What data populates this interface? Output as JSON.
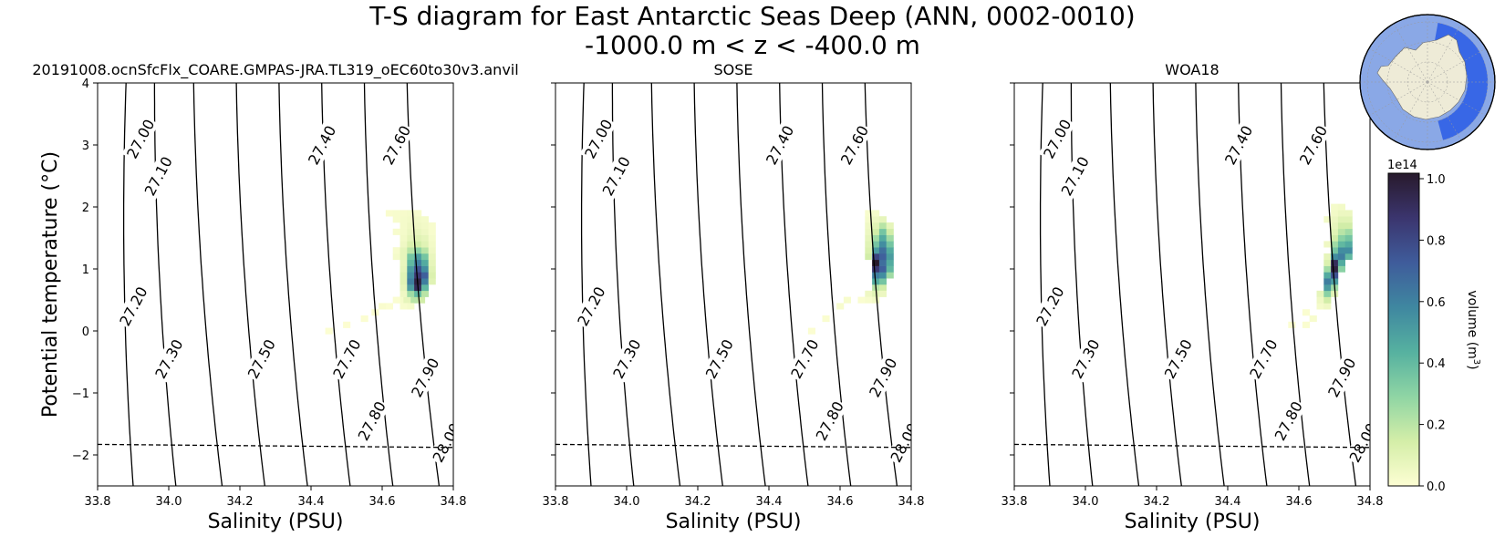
{
  "suptitle": {
    "line1": "T-S diagram for East Antarctic Seas Deep (ANN, 0002-0010)",
    "line2": "-1000.0 m < z < -400.0 m"
  },
  "chart_data": [
    {
      "type": "heatmap",
      "title": "20191008.ocnSfcFlx_COARE.GMPAS-JRA.TL319_oEC60to30v3.anvil",
      "xlabel": "Salinity (PSU)",
      "ylabel": "Potential temperature (°C)",
      "xlim": [
        33.8,
        34.8
      ],
      "ylim": [
        -2.5,
        4
      ],
      "xticks": [
        "33.8",
        "34.0",
        "34.2",
        "34.4",
        "34.6",
        "34.8"
      ],
      "yticks": [
        "−2",
        "−1",
        "0",
        "1",
        "2",
        "3",
        "4"
      ],
      "cells": [
        [
          34.45,
          0.0,
          0.004
        ],
        [
          34.5,
          0.1,
          0.005
        ],
        [
          34.55,
          0.2,
          0.008
        ],
        [
          34.58,
          0.3,
          0.01
        ],
        [
          34.6,
          0.4,
          0.015
        ],
        [
          34.65,
          0.5,
          0.03
        ],
        [
          34.67,
          0.5,
          0.08
        ],
        [
          34.69,
          0.5,
          0.2
        ],
        [
          34.71,
          0.5,
          0.15
        ],
        [
          34.66,
          0.6,
          0.05
        ],
        [
          34.68,
          0.6,
          0.25
        ],
        [
          34.7,
          0.6,
          0.4
        ],
        [
          34.72,
          0.6,
          0.2
        ],
        [
          34.66,
          0.7,
          0.08
        ],
        [
          34.68,
          0.7,
          0.5
        ],
        [
          34.7,
          0.7,
          0.9
        ],
        [
          34.72,
          0.7,
          0.4
        ],
        [
          34.66,
          0.8,
          0.1
        ],
        [
          34.68,
          0.8,
          0.6
        ],
        [
          34.7,
          0.8,
          0.95
        ],
        [
          34.72,
          0.8,
          0.6
        ],
        [
          34.74,
          0.8,
          0.1
        ],
        [
          34.66,
          0.9,
          0.1
        ],
        [
          34.68,
          0.9,
          0.55
        ],
        [
          34.7,
          0.9,
          0.85
        ],
        [
          34.72,
          0.9,
          0.7
        ],
        [
          34.74,
          0.9,
          0.12
        ],
        [
          34.66,
          1.0,
          0.08
        ],
        [
          34.68,
          1.0,
          0.5
        ],
        [
          34.7,
          1.0,
          0.75
        ],
        [
          34.72,
          1.0,
          0.55
        ],
        [
          34.74,
          1.0,
          0.1
        ],
        [
          34.66,
          1.1,
          0.07
        ],
        [
          34.68,
          1.1,
          0.4
        ],
        [
          34.7,
          1.1,
          0.6
        ],
        [
          34.72,
          1.1,
          0.45
        ],
        [
          34.74,
          1.1,
          0.08
        ],
        [
          34.64,
          1.2,
          0.03
        ],
        [
          34.66,
          1.2,
          0.08
        ],
        [
          34.68,
          1.2,
          0.35
        ],
        [
          34.7,
          1.2,
          0.5
        ],
        [
          34.72,
          1.2,
          0.35
        ],
        [
          34.74,
          1.2,
          0.07
        ],
        [
          34.64,
          1.3,
          0.02
        ],
        [
          34.66,
          1.3,
          0.08
        ],
        [
          34.68,
          1.3,
          0.2
        ],
        [
          34.7,
          1.3,
          0.3
        ],
        [
          34.72,
          1.3,
          0.2
        ],
        [
          34.74,
          1.3,
          0.05
        ],
        [
          34.66,
          1.4,
          0.05
        ],
        [
          34.68,
          1.4,
          0.12
        ],
        [
          34.7,
          1.4,
          0.15
        ],
        [
          34.72,
          1.4,
          0.1
        ],
        [
          34.74,
          1.4,
          0.04
        ],
        [
          34.66,
          1.5,
          0.04
        ],
        [
          34.68,
          1.5,
          0.08
        ],
        [
          34.7,
          1.5,
          0.1
        ],
        [
          34.72,
          1.5,
          0.08
        ],
        [
          34.74,
          1.5,
          0.03
        ],
        [
          34.64,
          1.6,
          0.02
        ],
        [
          34.66,
          1.6,
          0.03
        ],
        [
          34.68,
          1.6,
          0.06
        ],
        [
          34.7,
          1.6,
          0.07
        ],
        [
          34.72,
          1.6,
          0.05
        ],
        [
          34.74,
          1.6,
          0.02
        ],
        [
          34.66,
          1.7,
          0.03
        ],
        [
          34.68,
          1.7,
          0.05
        ],
        [
          34.7,
          1.7,
          0.05
        ],
        [
          34.72,
          1.7,
          0.04
        ],
        [
          34.74,
          1.7,
          0.02
        ],
        [
          34.64,
          1.8,
          0.02
        ],
        [
          34.66,
          1.8,
          0.03
        ],
        [
          34.68,
          1.8,
          0.04
        ],
        [
          34.7,
          1.8,
          0.04
        ],
        [
          34.72,
          1.8,
          0.03
        ],
        [
          34.62,
          1.9,
          0.015
        ],
        [
          34.64,
          1.9,
          0.02
        ],
        [
          34.66,
          1.9,
          0.025
        ],
        [
          34.68,
          1.9,
          0.03
        ],
        [
          34.7,
          1.9,
          0.02
        ],
        [
          34.66,
          0.4,
          0.02
        ],
        [
          34.68,
          0.4,
          0.03
        ],
        [
          34.64,
          0.5,
          0.01
        ],
        [
          34.62,
          0.4,
          0.008
        ]
      ]
    },
    {
      "type": "heatmap",
      "title": "SOSE",
      "xlabel": "Salinity (PSU)",
      "ylabel": "",
      "xlim": [
        33.8,
        34.8
      ],
      "ylim": [
        -2.5,
        4
      ],
      "xticks": [
        "33.8",
        "34.0",
        "34.2",
        "34.4",
        "34.6",
        "34.8"
      ],
      "yticks": [],
      "cells": [
        [
          34.52,
          0.0,
          0.006
        ],
        [
          34.56,
          0.2,
          0.01
        ],
        [
          34.6,
          0.4,
          0.02
        ],
        [
          34.62,
          0.5,
          0.02
        ],
        [
          34.7,
          0.7,
          0.2
        ],
        [
          34.72,
          0.7,
          0.15
        ],
        [
          34.7,
          0.8,
          0.45
        ],
        [
          34.72,
          0.8,
          0.35
        ],
        [
          34.7,
          0.9,
          0.6
        ],
        [
          34.72,
          0.9,
          0.55
        ],
        [
          34.74,
          0.9,
          0.25
        ],
        [
          34.7,
          1.0,
          0.85
        ],
        [
          34.72,
          1.0,
          0.7
        ],
        [
          34.74,
          1.0,
          0.4
        ],
        [
          34.7,
          1.1,
          1.0
        ],
        [
          34.72,
          1.1,
          0.65
        ],
        [
          34.74,
          1.1,
          0.45
        ],
        [
          34.68,
          1.2,
          0.15
        ],
        [
          34.7,
          1.2,
          0.8
        ],
        [
          34.72,
          1.2,
          0.7
        ],
        [
          34.74,
          1.2,
          0.5
        ],
        [
          34.68,
          1.3,
          0.12
        ],
        [
          34.7,
          1.3,
          0.5
        ],
        [
          34.72,
          1.3,
          0.65
        ],
        [
          34.74,
          1.3,
          0.45
        ],
        [
          34.68,
          1.4,
          0.1
        ],
        [
          34.7,
          1.4,
          0.35
        ],
        [
          34.72,
          1.4,
          0.55
        ],
        [
          34.74,
          1.4,
          0.35
        ],
        [
          34.68,
          1.5,
          0.08
        ],
        [
          34.7,
          1.5,
          0.25
        ],
        [
          34.72,
          1.5,
          0.45
        ],
        [
          34.74,
          1.5,
          0.25
        ],
        [
          34.68,
          1.6,
          0.06
        ],
        [
          34.7,
          1.6,
          0.15
        ],
        [
          34.72,
          1.6,
          0.35
        ],
        [
          34.74,
          1.6,
          0.15
        ],
        [
          34.68,
          1.7,
          0.05
        ],
        [
          34.7,
          1.7,
          0.1
        ],
        [
          34.72,
          1.7,
          0.2
        ],
        [
          34.74,
          1.7,
          0.08
        ],
        [
          34.68,
          1.8,
          0.03
        ],
        [
          34.7,
          1.8,
          0.06
        ],
        [
          34.72,
          1.8,
          0.08
        ],
        [
          34.68,
          1.9,
          0.02
        ],
        [
          34.7,
          1.9,
          0.03
        ],
        [
          34.68,
          0.6,
          0.05
        ],
        [
          34.7,
          0.6,
          0.1
        ],
        [
          34.72,
          0.6,
          0.06
        ],
        [
          34.68,
          0.5,
          0.02
        ],
        [
          34.7,
          0.5,
          0.04
        ],
        [
          34.66,
          0.5,
          0.01
        ]
      ]
    },
    {
      "type": "heatmap",
      "title": "WOA18",
      "xlabel": "Salinity (PSU)",
      "ylabel": "",
      "xlim": [
        33.8,
        34.8
      ],
      "ylim": [
        -2.5,
        4
      ],
      "xticks": [
        "33.8",
        "34.0",
        "34.2",
        "34.4",
        "34.6",
        "34.8"
      ],
      "yticks": [],
      "cells": [
        [
          34.58,
          0.1,
          0.006
        ],
        [
          34.62,
          0.3,
          0.01
        ],
        [
          34.66,
          0.4,
          0.03
        ],
        [
          34.68,
          0.4,
          0.05
        ],
        [
          34.66,
          0.5,
          0.05
        ],
        [
          34.68,
          0.5,
          0.15
        ],
        [
          34.66,
          0.6,
          0.08
        ],
        [
          34.68,
          0.6,
          0.3
        ],
        [
          34.7,
          0.6,
          0.1
        ],
        [
          34.68,
          0.7,
          0.5
        ],
        [
          34.7,
          0.7,
          0.25
        ],
        [
          34.68,
          0.8,
          0.6
        ],
        [
          34.7,
          0.8,
          0.5
        ],
        [
          34.68,
          0.9,
          0.45
        ],
        [
          34.7,
          0.9,
          0.75
        ],
        [
          34.68,
          1.0,
          0.25
        ],
        [
          34.7,
          1.0,
          0.95
        ],
        [
          34.72,
          1.0,
          0.3
        ],
        [
          34.68,
          1.1,
          0.12
        ],
        [
          34.7,
          1.1,
          0.9
        ],
        [
          34.72,
          1.1,
          0.45
        ],
        [
          34.68,
          1.2,
          0.08
        ],
        [
          34.7,
          1.2,
          0.55
        ],
        [
          34.72,
          1.2,
          0.6
        ],
        [
          34.74,
          1.2,
          0.4
        ],
        [
          34.7,
          1.3,
          0.35
        ],
        [
          34.72,
          1.3,
          0.55
        ],
        [
          34.74,
          1.3,
          0.55
        ],
        [
          34.68,
          1.4,
          0.05
        ],
        [
          34.7,
          1.4,
          0.25
        ],
        [
          34.72,
          1.4,
          0.4
        ],
        [
          34.74,
          1.4,
          0.45
        ],
        [
          34.7,
          1.5,
          0.15
        ],
        [
          34.72,
          1.5,
          0.3
        ],
        [
          34.74,
          1.5,
          0.35
        ],
        [
          34.7,
          1.6,
          0.1
        ],
        [
          34.72,
          1.6,
          0.2
        ],
        [
          34.74,
          1.6,
          0.25
        ],
        [
          34.7,
          1.7,
          0.08
        ],
        [
          34.72,
          1.7,
          0.15
        ],
        [
          34.74,
          1.7,
          0.15
        ],
        [
          34.68,
          1.8,
          0.04
        ],
        [
          34.7,
          1.8,
          0.06
        ],
        [
          34.72,
          1.8,
          0.1
        ],
        [
          34.74,
          1.8,
          0.1
        ],
        [
          34.7,
          1.9,
          0.04
        ],
        [
          34.72,
          1.9,
          0.06
        ],
        [
          34.74,
          1.9,
          0.06
        ],
        [
          34.7,
          2.0,
          0.03
        ],
        [
          34.72,
          2.0,
          0.04
        ],
        [
          34.64,
          0.2,
          0.02
        ],
        [
          34.62,
          0.1,
          0.01
        ]
      ]
    }
  ],
  "isopycnals": {
    "labels": [
      "27.00",
      "27.10",
      "27.20",
      "27.30",
      "27.40",
      "27.50",
      "27.60",
      "27.70",
      "27.80",
      "27.90",
      "28.00"
    ],
    "color": "#000000"
  },
  "freezing_line": {
    "t_at_s_min": -1.83,
    "t_at_s_max": -1.88,
    "style": "dashed",
    "color": "#000000"
  },
  "colorbar": {
    "label": "volume (m³)",
    "label_text": "volume (m",
    "label_sup": "3",
    "label_close": ")",
    "multiplier": "1e14",
    "ticks": [
      "0.0",
      "0.2",
      "0.4",
      "0.6",
      "0.8",
      "1.0"
    ],
    "range": [
      0,
      1.0
    ],
    "colormap": "deep",
    "colors": [
      "#fdfed3",
      "#d4eea8",
      "#8fd5a4",
      "#56b1a0",
      "#3f87a0",
      "#3f5c9b",
      "#3b356e",
      "#281a2c"
    ]
  },
  "map_inset": {
    "ocean_color": "#8aa8e6",
    "land_color": "#eeebd7",
    "region_color": "#2f5fe6"
  }
}
